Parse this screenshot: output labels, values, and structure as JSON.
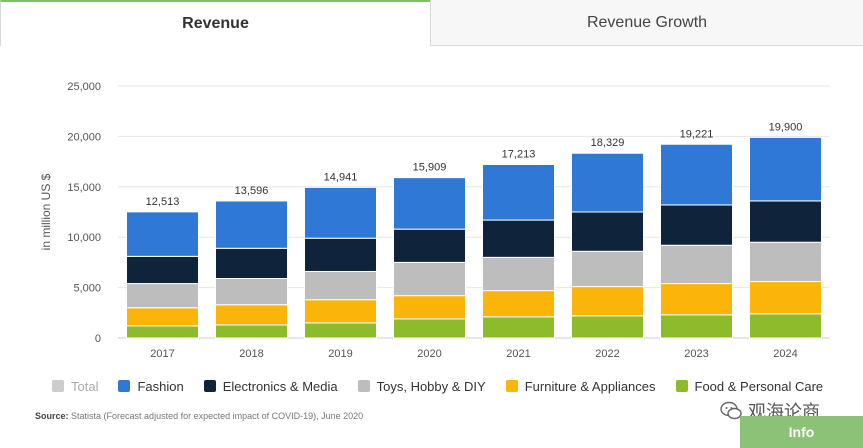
{
  "tabs": {
    "active": "Revenue",
    "inactive": "Revenue Growth"
  },
  "chart_data": {
    "type": "bar",
    "stacked": true,
    "ylabel": "in million US $",
    "ylim": [
      0,
      25000
    ],
    "yticks": [
      0,
      5000,
      10000,
      15000,
      20000,
      25000
    ],
    "ytick_labels": [
      "0",
      "5,000",
      "10,000",
      "15,000",
      "20,000",
      "25,000"
    ],
    "grid": true,
    "categories": [
      "2017",
      "2018",
      "2019",
      "2020",
      "2021",
      "2022",
      "2023",
      "2024"
    ],
    "totals": [
      12513,
      13596,
      14941,
      15909,
      17213,
      18329,
      19221,
      19900
    ],
    "total_labels": [
      "12,513",
      "13,596",
      "14,941",
      "15,909",
      "17,213",
      "18,329",
      "19,221",
      "19,900"
    ],
    "series": [
      {
        "name": "Food & Personal Care",
        "color": "#8dbb2b",
        "values": [
          1200,
          1300,
          1500,
          1900,
          2100,
          2200,
          2300,
          2400
        ]
      },
      {
        "name": "Furniture & Appliances",
        "color": "#fbb40a",
        "values": [
          1800,
          2000,
          2300,
          2300,
          2600,
          2900,
          3100,
          3200
        ]
      },
      {
        "name": "Toys, Hobby & DIY",
        "color": "#bdbdbd",
        "values": [
          2400,
          2600,
          2800,
          3300,
          3300,
          3500,
          3800,
          3900
        ]
      },
      {
        "name": "Electronics & Media",
        "color": "#0f243b",
        "values": [
          2700,
          3000,
          3300,
          3300,
          3700,
          3900,
          4000,
          4100
        ]
      },
      {
        "name": "Fashion",
        "color": "#2f78d6",
        "values": [
          4413,
          4696,
          5041,
          5109,
          5513,
          5829,
          6021,
          6300
        ]
      }
    ],
    "legend": [
      {
        "name": "Total",
        "color": "#cccccc",
        "dimmed": true
      },
      {
        "name": "Fashion",
        "color": "#2f78d6"
      },
      {
        "name": "Electronics & Media",
        "color": "#0f243b"
      },
      {
        "name": "Toys, Hobby & DIY",
        "color": "#bdbdbd"
      },
      {
        "name": "Furniture & Appliances",
        "color": "#fbb40a"
      },
      {
        "name": "Food & Personal Care",
        "color": "#8dbb2b"
      }
    ],
    "legend_position": "bottom"
  },
  "source": {
    "label": "Source:",
    "text": "Statista (Forecast adjusted for expected impact of COVID-19), June 2020"
  },
  "watermark": "观海论商",
  "info_button": "Info"
}
